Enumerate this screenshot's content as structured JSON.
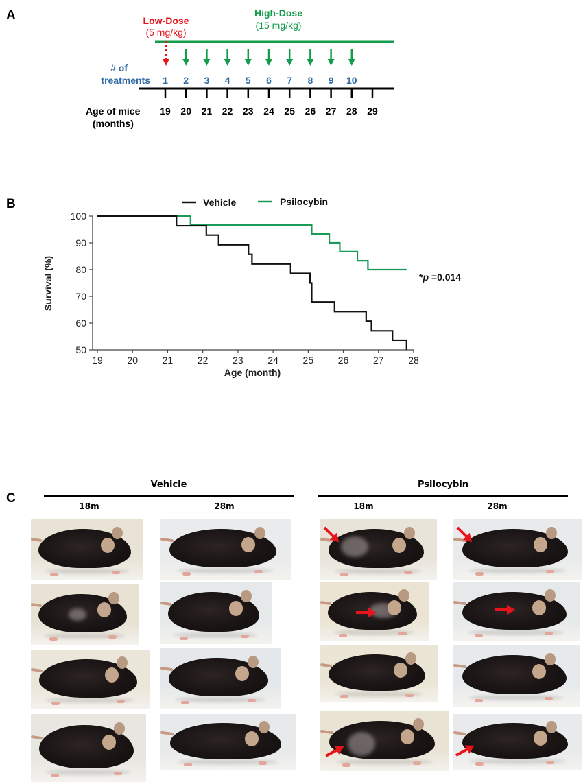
{
  "panels": {
    "a": {
      "label": "A"
    },
    "b": {
      "label": "B"
    },
    "c": {
      "label": "C"
    }
  },
  "timeline": {
    "low_dose_title": "Low-Dose",
    "low_dose_amount": "(5 mg/kg)",
    "high_dose_title": "High-Dose",
    "high_dose_amount": "(15 mg/kg)",
    "treatments_label_line1": "# of",
    "treatments_label_line2": "treatments",
    "treatments": [
      "1",
      "2",
      "3",
      "4",
      "5",
      "6",
      "7",
      "8",
      "9",
      "10"
    ],
    "age_label_line1": "Age of mice",
    "age_label_line2": "(months)",
    "ages": [
      "19",
      "20",
      "21",
      "22",
      "23",
      "24",
      "25",
      "26",
      "27",
      "28",
      "29"
    ],
    "colors": {
      "low": "#e8141b",
      "high": "#139c4a",
      "treat": "#2e6aa6"
    }
  },
  "chart_data": {
    "type": "line",
    "subtype": "kaplan-meier step",
    "title": "",
    "xlabel": "Age (month)",
    "ylabel": "Survival (%)",
    "xlim": [
      19,
      28
    ],
    "ylim": [
      50,
      100
    ],
    "xticks": [
      "19",
      "20",
      "21",
      "22",
      "23",
      "24",
      "25",
      "26",
      "27",
      "28"
    ],
    "yticks": [
      "50",
      "60",
      "70",
      "80",
      "90",
      "100"
    ],
    "legend": {
      "position": "top",
      "entries": [
        "Vehicle",
        "Psilocybin"
      ]
    },
    "grid": false,
    "series": [
      {
        "name": "Vehicle",
        "color": "#111111",
        "points": [
          [
            19,
            100
          ],
          [
            21.25,
            96.4
          ],
          [
            22.1,
            92.9
          ],
          [
            22.45,
            89.3
          ],
          [
            23.3,
            85.7
          ],
          [
            23.4,
            82.1
          ],
          [
            24.5,
            78.6
          ],
          [
            25.05,
            75.0
          ],
          [
            25.1,
            67.9
          ],
          [
            25.75,
            64.3
          ],
          [
            26.65,
            60.7
          ],
          [
            26.8,
            57.1
          ],
          [
            27.4,
            53.6
          ],
          [
            27.8,
            50.0
          ]
        ]
      },
      {
        "name": "Psilocybin",
        "color": "#1a9a57",
        "points": [
          [
            19,
            100
          ],
          [
            21.65,
            96.7
          ],
          [
            25.1,
            93.3
          ],
          [
            25.6,
            90.0
          ],
          [
            25.9,
            86.7
          ],
          [
            26.4,
            83.3
          ],
          [
            26.7,
            80.0
          ],
          [
            27.8,
            80.0
          ]
        ]
      }
    ],
    "annotation": {
      "prefix": "*",
      "italic": "p",
      "suffix": " =0.014"
    }
  },
  "photos": {
    "groups": [
      {
        "title": "Vehicle",
        "columns": [
          "18m",
          "28m"
        ]
      },
      {
        "title": "Psilocybin",
        "columns": [
          "18m",
          "28m"
        ]
      }
    ],
    "grid_description": "4 rows of mouse photographs per column; red arrows mark fur-graying regions in Psilocybin group",
    "arrow_color": "#e8141b"
  }
}
